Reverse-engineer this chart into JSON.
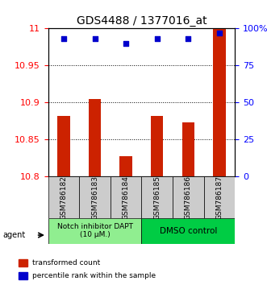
{
  "title": "GDS4488 / 1377016_at",
  "samples": [
    "GSM786182",
    "GSM786183",
    "GSM786184",
    "GSM786185",
    "GSM786186",
    "GSM786187"
  ],
  "red_values": [
    10.882,
    10.905,
    10.828,
    10.882,
    10.873,
    11.0
  ],
  "blue_values": [
    93,
    93,
    90,
    93,
    93,
    97
  ],
  "ylim_left": [
    10.8,
    11.0
  ],
  "ylim_right": [
    0,
    100
  ],
  "yticks_left": [
    10.8,
    10.85,
    10.9,
    10.95,
    11.0
  ],
  "ytick_labels_left": [
    "10.8",
    "10.85",
    "10.9",
    "10.95",
    "11"
  ],
  "yticks_right": [
    0,
    25,
    50,
    75,
    100
  ],
  "ytick_labels_right": [
    "0",
    "25",
    "50",
    "75",
    "100%"
  ],
  "group1_label": "Notch inhibitor DAPT\n(10 μM.)",
  "group2_label": "DMSO control",
  "group1_indices": [
    0,
    1,
    2
  ],
  "group2_indices": [
    3,
    4,
    5
  ],
  "group1_color": "#90EE90",
  "group2_color": "#00CC44",
  "agent_label": "agent",
  "legend_red": "transformed count",
  "legend_blue": "percentile rank within the sample",
  "bar_color": "#CC2200",
  "dot_color": "#0000CC",
  "grid_color": "#000000",
  "plot_bg": "#FFFFFF",
  "sample_bg": "#CCCCCC"
}
